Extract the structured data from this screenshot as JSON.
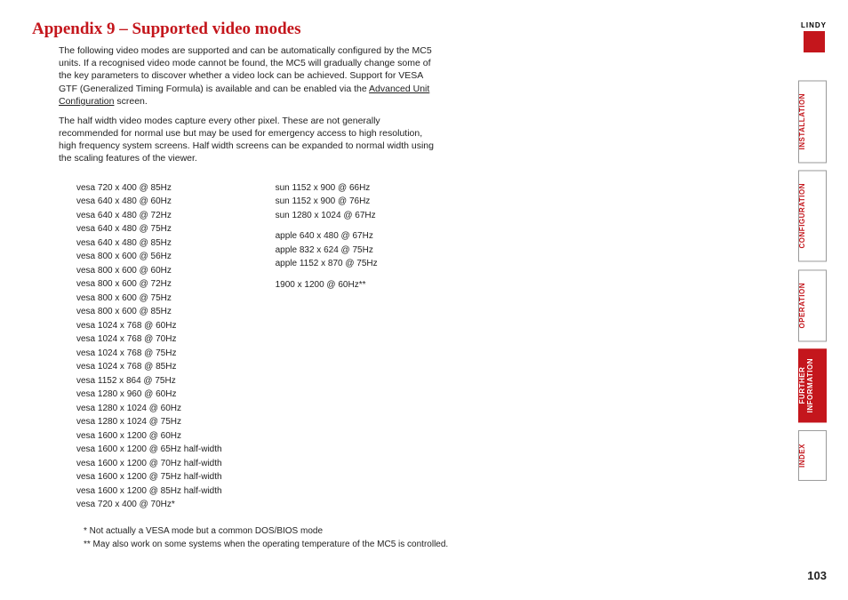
{
  "title": "Appendix 9 – Supported video modes",
  "paragraphs": {
    "p1a": "The following video modes are supported and can be automatically configured by the MC5 units. If a recognised video mode cannot be found, the MC5 will gradually change some of the key parameters to discover whether a video lock can be achieved. Support for VESA GTF (Generalized Timing Formula) is available and can be enabled via the ",
    "p1link": "Advanced Unit Configuration",
    "p1b": " screen.",
    "p2": "The half width video modes capture every other pixel. These are not generally recommended for normal use but may be used for emergency access to high resolution, high frequency system screens. Half width screens can be expanded to normal width using the scaling features of the viewer."
  },
  "col1": [
    "vesa 720 x 400 @ 85Hz",
    "vesa 640 x 480 @ 60Hz",
    "vesa 640 x 480 @ 72Hz",
    "vesa 640 x 480 @ 75Hz",
    "vesa 640 x 480 @ 85Hz",
    "vesa 800 x 600 @ 56Hz",
    "vesa 800 x 600 @ 60Hz",
    "vesa 800 x 600 @ 72Hz",
    "vesa 800 x 600 @ 75Hz",
    "vesa 800 x 600 @ 85Hz",
    "vesa 1024 x 768 @ 60Hz",
    "vesa 1024 x 768 @ 70Hz",
    "vesa 1024 x 768 @ 75Hz",
    "vesa 1024 x 768 @ 85Hz",
    "vesa 1152 x 864 @ 75Hz",
    "vesa 1280 x 960 @ 60Hz",
    "vesa 1280 x 1024 @ 60Hz",
    "vesa 1280 x 1024 @ 75Hz",
    "vesa 1600 x 1200 @ 60Hz",
    "vesa 1600 x 1200 @ 65Hz half-width",
    "vesa 1600 x 1200 @ 70Hz half-width",
    "vesa 1600 x 1200 @ 75Hz half-width",
    "vesa 1600 x 1200 @ 85Hz half-width",
    "vesa 720 x 400 @ 70Hz*"
  ],
  "col2_sun": [
    "sun 1152 x 900 @ 66Hz",
    "sun 1152 x 900 @ 76Hz",
    "sun 1280 x 1024 @ 67Hz"
  ],
  "col2_apple": [
    "apple 640 x 480 @ 67Hz",
    "apple 832 x 624 @ 75Hz",
    "apple 1152 x 870 @ 75Hz"
  ],
  "col2_extra": [
    "1900 x 1200 @ 60Hz**"
  ],
  "footnotes": {
    "f1": "*  Not actually a VESA mode but a common DOS/BIOS mode",
    "f2": "** May also work on some systems when the operating temperature of the MC5 is controlled."
  },
  "logo": "LINDY",
  "tabs": {
    "installation": "INSTALLATION",
    "configuration": "CONFIGURATION",
    "operation": "OPERATION",
    "further1": "FURTHER",
    "further2": "INFORMATION",
    "index": "INDEX"
  },
  "page_number": "103",
  "colors": {
    "accent": "#c4161c",
    "text": "#222222",
    "border": "#999999",
    "bg": "#ffffff"
  }
}
